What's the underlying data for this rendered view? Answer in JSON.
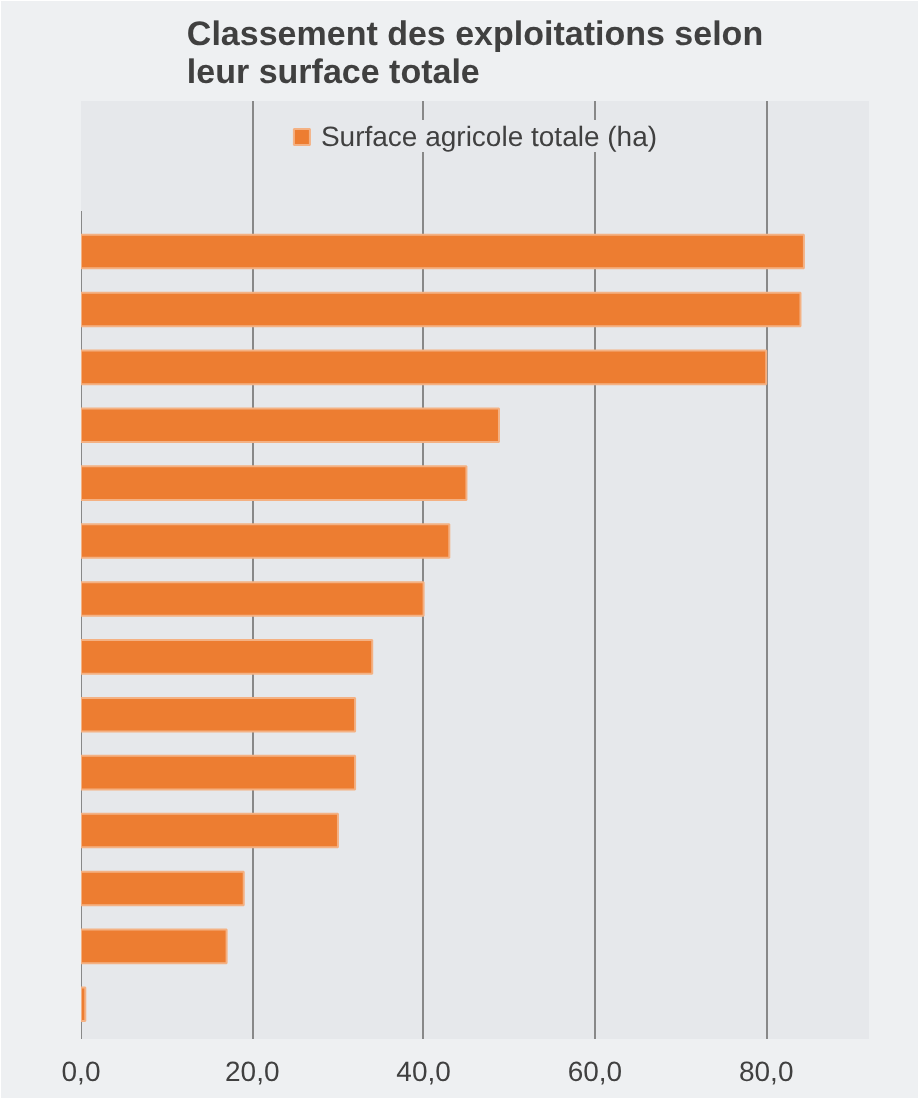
{
  "chart_data": {
    "type": "bar",
    "orientation": "horizontal",
    "title": "Classement des exploitations selon leur surface totale",
    "categories": [
      null,
      null,
      null,
      null,
      null,
      null,
      null,
      null,
      null,
      null,
      null,
      null,
      null,
      null
    ],
    "series": [
      {
        "name": "Surface agricole totale (ha)",
        "color": "#ed7d31",
        "values": [
          84.4,
          84.0,
          80.0,
          48.8,
          45.0,
          43.0,
          40.0,
          34.0,
          32.0,
          32.0,
          30.0,
          19.0,
          17.0,
          0.5
        ]
      }
    ],
    "xlim": [
      0,
      92
    ],
    "xticks": [
      {
        "value": 0,
        "label": "0,0"
      },
      {
        "value": 20,
        "label": "20,0"
      },
      {
        "value": 40,
        "label": "40,0"
      },
      {
        "value": 60,
        "label": "60,0"
      },
      {
        "value": 80,
        "label": "80,0"
      }
    ],
    "grid": "x",
    "legend": "top",
    "tick_labels": "x"
  }
}
